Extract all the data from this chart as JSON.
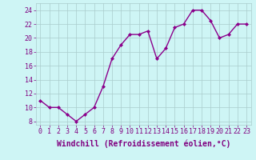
{
  "x": [
    0,
    1,
    2,
    3,
    4,
    5,
    6,
    7,
    8,
    9,
    10,
    11,
    12,
    13,
    14,
    15,
    16,
    17,
    18,
    19,
    20,
    21,
    22,
    23
  ],
  "y": [
    11,
    10,
    10,
    9,
    8,
    9,
    10,
    13,
    17,
    19,
    20.5,
    20.5,
    21,
    17,
    18.5,
    21.5,
    22,
    24,
    24,
    22.5,
    20,
    20.5,
    22,
    22
  ],
  "line_color": "#8B008B",
  "marker": "D",
  "marker_size": 2,
  "xlabel": "Windchill (Refroidissement éolien,°C)",
  "xlabel_fontsize": 7,
  "ylabel_ticks": [
    8,
    10,
    12,
    14,
    16,
    18,
    20,
    22,
    24
  ],
  "xtick_labels": [
    "0",
    "1",
    "2",
    "3",
    "4",
    "5",
    "6",
    "7",
    "8",
    "9",
    "10",
    "11",
    "12",
    "13",
    "14",
    "15",
    "16",
    "17",
    "18",
    "19",
    "20",
    "21",
    "22",
    "23"
  ],
  "ylim": [
    7.5,
    25
  ],
  "xlim": [
    -0.5,
    23.5
  ],
  "bg_color": "#cef5f5",
  "grid_color": "#aacccc",
  "tick_color": "#800080",
  "tick_fontsize": 6,
  "linewidth": 1.0
}
